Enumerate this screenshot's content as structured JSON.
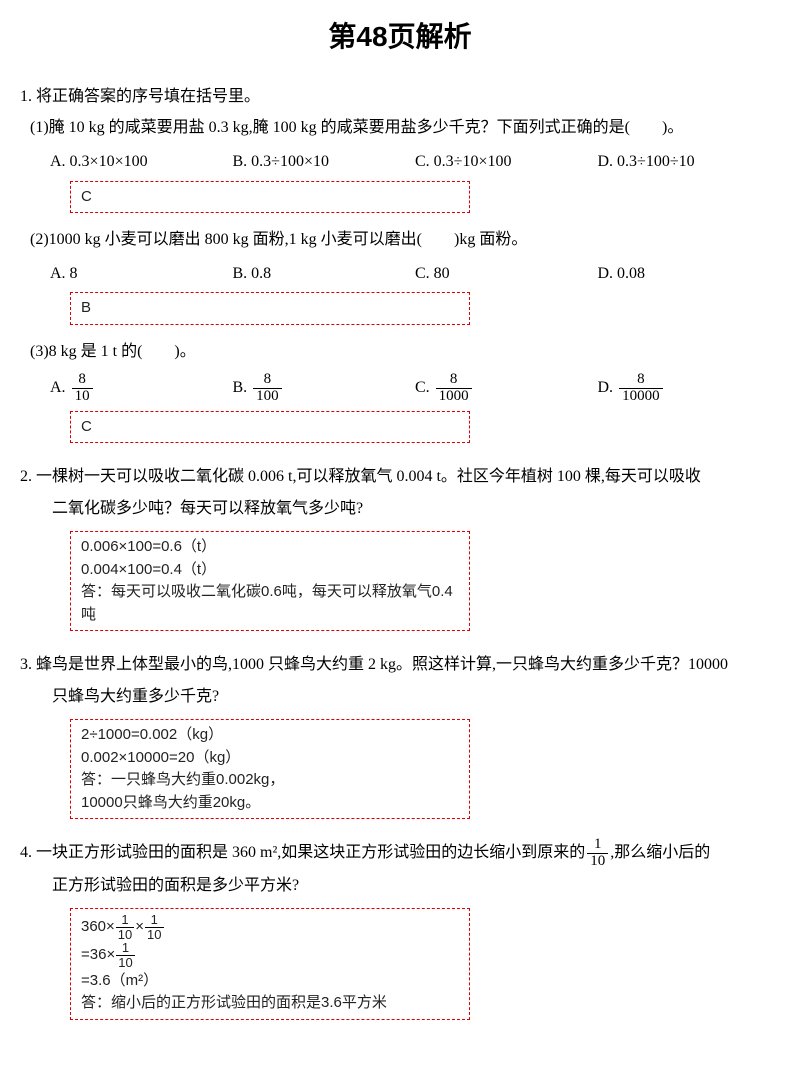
{
  "title": "第48页解析",
  "q1": {
    "stem": "1.  将正确答案的序号填在括号里。",
    "sub1": {
      "stem": "(1)腌 10 kg 的咸菜要用盐 0.3 kg,腌 100 kg 的咸菜要用盐多少千克？下面列式正确的是(　　)。",
      "optA": "A.  0.3×10×100",
      "optB": "B.  0.3÷100×10",
      "optC": "C.  0.3÷10×100",
      "optD": "D.  0.3÷100÷10",
      "answer": "C"
    },
    "sub2": {
      "stem": "(2)1000 kg 小麦可以磨出 800 kg 面粉,1 kg 小麦可以磨出(　　)kg 面粉。",
      "optA": "A.  8",
      "optB": "B.  0.8",
      "optC": "C.  80",
      "optD": "D.  0.08",
      "answer": "B"
    },
    "sub3": {
      "stem": "(3)8 kg 是 1 t 的(　　)。",
      "optA_prefix": "A.  ",
      "optA_num": "8",
      "optA_den": "10",
      "optB_prefix": "B.  ",
      "optB_num": "8",
      "optB_den": "100",
      "optC_prefix": "C.  ",
      "optC_num": "8",
      "optC_den": "1000",
      "optD_prefix": "D.  ",
      "optD_num": "8",
      "optD_den": "10000",
      "answer": "C"
    }
  },
  "q2": {
    "stem_l1": "2.  一棵树一天可以吸收二氧化碳 0.006 t,可以释放氧气 0.004 t。社区今年植树 100 棵,每天可以吸收",
    "stem_l2": "二氧化碳多少吨？每天可以释放氧气多少吨?",
    "ans_l1": "0.006×100=0.6（t）",
    "ans_l2": "0.004×100=0.4（t）",
    "ans_l3": "答：每天可以吸收二氧化碳0.6吨，每天可以释放氧气0.4吨"
  },
  "q3": {
    "stem_l1": "3.  蜂鸟是世界上体型最小的鸟,1000 只蜂鸟大约重 2 kg。照这样计算,一只蜂鸟大约重多少千克？10000",
    "stem_l2": "只蜂鸟大约重多少千克?",
    "ans_l1": "2÷1000=0.002（kg）",
    "ans_l2": "0.002×10000=20（kg）",
    "ans_l3": "答：一只蜂鸟大约重0.002kg，",
    "ans_l4": "10000只蜂鸟大约重20kg。"
  },
  "q4": {
    "stem_l1_a": "4.  一块正方形试验田的面积是 360 m²,如果这块正方形试验田的边长缩小到原来的",
    "stem_frac_num": "1",
    "stem_frac_den": "10",
    "stem_l1_b": ",那么缩小后的",
    "stem_l2": "正方形试验田的面积是多少平方米?",
    "ans_l1_a": "360×",
    "ans_frac1_num": "1",
    "ans_frac1_den": "10",
    "ans_l1_b": "×",
    "ans_frac2_num": "1",
    "ans_frac2_den": "10",
    "ans_l2_a": "=36×",
    "ans_frac3_num": "1",
    "ans_frac3_den": "10",
    "ans_l3": "=3.6（m²）",
    "ans_l4": "答：缩小后的正方形试验田的面积是3.6平方米"
  },
  "colors": {
    "answer_border": "#d00",
    "text": "#000",
    "background": "#ffffff"
  }
}
